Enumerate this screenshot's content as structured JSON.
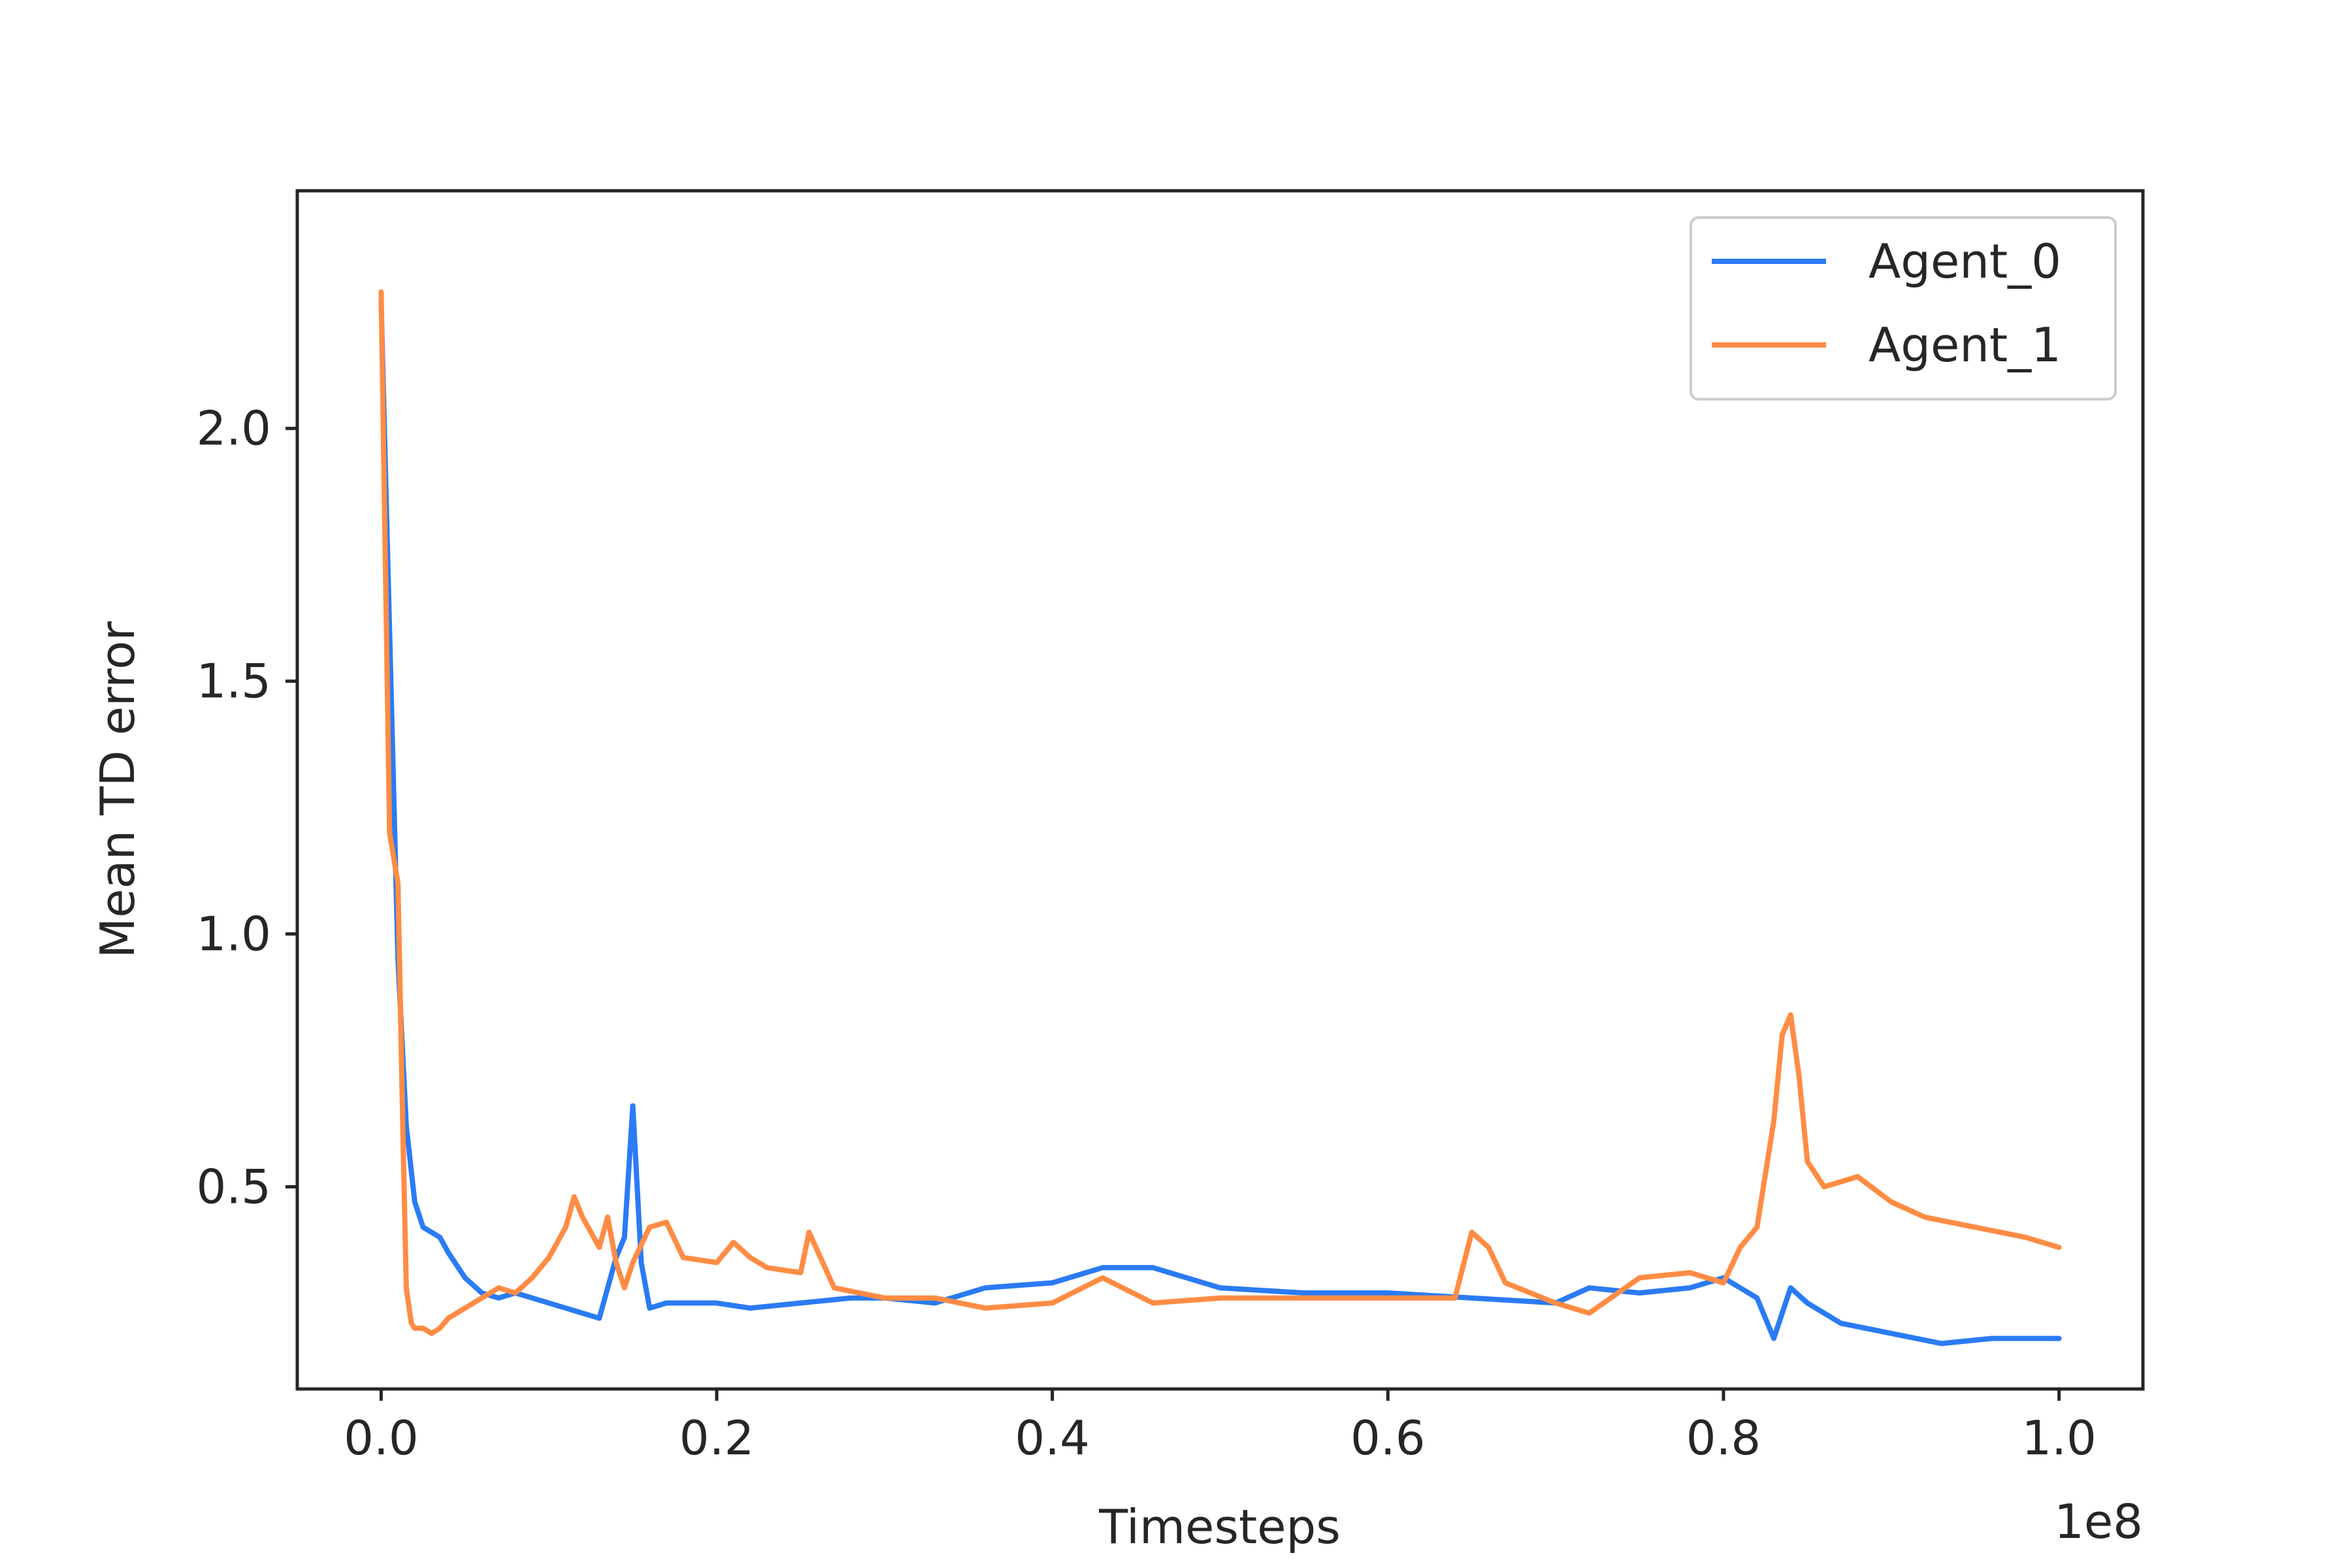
{
  "chart_data": {
    "type": "line",
    "title": "",
    "xlabel": "Timesteps",
    "ylabel": "Mean TD error",
    "x_offset_label": "1e8",
    "xlim": [
      -0.05,
      1.05
    ],
    "ylim": [
      0.1,
      2.47
    ],
    "xticks": [
      0.0,
      0.2,
      0.4,
      0.6,
      0.8,
      1.0
    ],
    "xtick_labels": [
      "0.0",
      "0.2",
      "0.4",
      "0.6",
      "0.8",
      "1.0"
    ],
    "yticks": [
      0.5,
      1.0,
      1.5,
      2.0
    ],
    "ytick_labels": [
      "0.5",
      "1.0",
      "1.5",
      "2.0"
    ],
    "grid": false,
    "legend_position": "top-right",
    "series": [
      {
        "name": "Agent_0",
        "color": "#2a7bf5",
        "x": [
          0.0,
          0.005,
          0.01,
          0.015,
          0.02,
          0.025,
          0.03,
          0.035,
          0.04,
          0.05,
          0.06,
          0.07,
          0.08,
          0.09,
          0.1,
          0.11,
          0.12,
          0.13,
          0.135,
          0.14,
          0.145,
          0.15,
          0.155,
          0.16,
          0.17,
          0.18,
          0.2,
          0.22,
          0.25,
          0.28,
          0.3,
          0.33,
          0.36,
          0.4,
          0.43,
          0.46,
          0.5,
          0.55,
          0.6,
          0.65,
          0.7,
          0.72,
          0.75,
          0.78,
          0.8,
          0.82,
          0.83,
          0.84,
          0.85,
          0.87,
          0.9,
          0.93,
          0.96,
          1.0
        ],
        "y": [
          2.25,
          1.6,
          0.95,
          0.62,
          0.47,
          0.42,
          0.41,
          0.4,
          0.37,
          0.32,
          0.29,
          0.28,
          0.29,
          0.28,
          0.27,
          0.26,
          0.25,
          0.24,
          0.3,
          0.36,
          0.4,
          0.66,
          0.35,
          0.26,
          0.27,
          0.27,
          0.27,
          0.26,
          0.27,
          0.28,
          0.28,
          0.27,
          0.3,
          0.31,
          0.34,
          0.34,
          0.3,
          0.29,
          0.29,
          0.28,
          0.27,
          0.3,
          0.29,
          0.3,
          0.32,
          0.28,
          0.2,
          0.3,
          0.27,
          0.23,
          0.21,
          0.19,
          0.2,
          0.2
        ]
      },
      {
        "name": "Agent_1",
        "color": "#ff8c44",
        "x": [
          0.0,
          0.005,
          0.01,
          0.013,
          0.015,
          0.018,
          0.02,
          0.025,
          0.03,
          0.035,
          0.04,
          0.05,
          0.06,
          0.07,
          0.08,
          0.09,
          0.1,
          0.11,
          0.115,
          0.12,
          0.13,
          0.135,
          0.14,
          0.145,
          0.15,
          0.16,
          0.17,
          0.18,
          0.2,
          0.21,
          0.22,
          0.23,
          0.25,
          0.255,
          0.27,
          0.3,
          0.33,
          0.36,
          0.4,
          0.43,
          0.46,
          0.5,
          0.55,
          0.6,
          0.64,
          0.65,
          0.66,
          0.67,
          0.7,
          0.72,
          0.75,
          0.78,
          0.8,
          0.81,
          0.82,
          0.83,
          0.835,
          0.84,
          0.845,
          0.85,
          0.86,
          0.88,
          0.9,
          0.92,
          0.95,
          0.98,
          1.0
        ],
        "y": [
          2.27,
          1.2,
          1.1,
          0.6,
          0.3,
          0.23,
          0.22,
          0.22,
          0.21,
          0.22,
          0.24,
          0.26,
          0.28,
          0.3,
          0.29,
          0.32,
          0.36,
          0.42,
          0.48,
          0.44,
          0.38,
          0.44,
          0.35,
          0.3,
          0.35,
          0.42,
          0.43,
          0.36,
          0.35,
          0.39,
          0.36,
          0.34,
          0.33,
          0.41,
          0.3,
          0.28,
          0.28,
          0.26,
          0.27,
          0.32,
          0.27,
          0.28,
          0.28,
          0.28,
          0.28,
          0.41,
          0.38,
          0.31,
          0.27,
          0.25,
          0.32,
          0.33,
          0.31,
          0.38,
          0.42,
          0.63,
          0.8,
          0.84,
          0.72,
          0.55,
          0.5,
          0.52,
          0.47,
          0.44,
          0.42,
          0.4,
          0.38
        ]
      }
    ]
  }
}
